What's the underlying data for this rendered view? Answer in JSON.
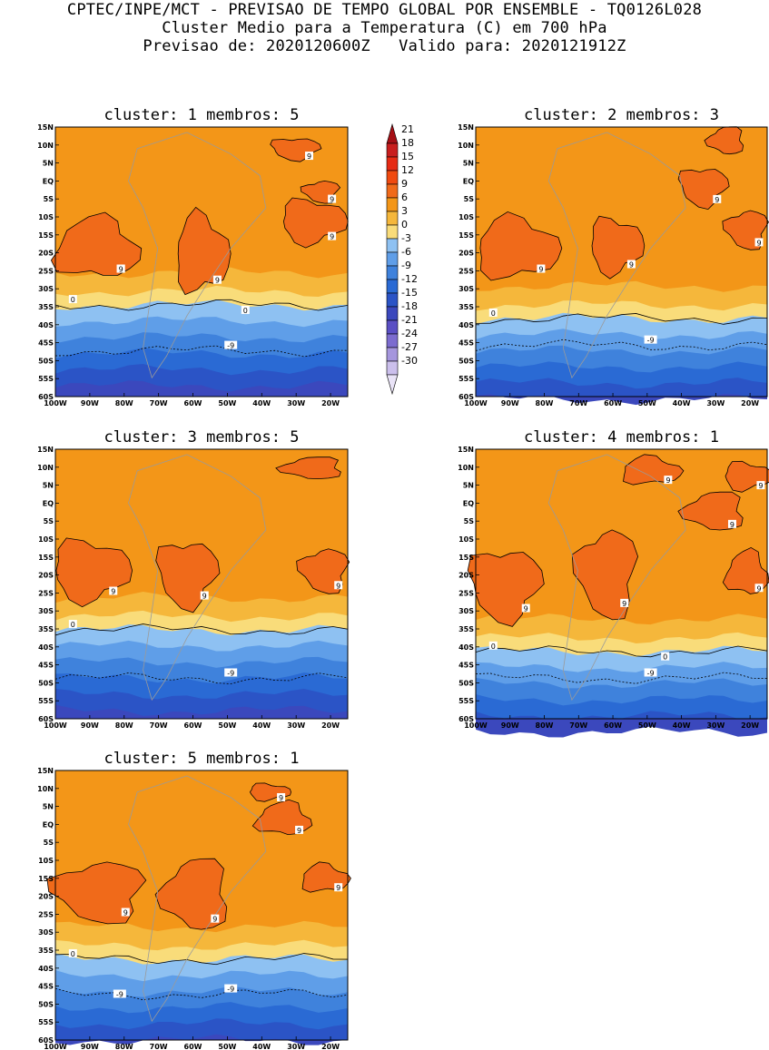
{
  "header": {
    "line1": "CPTEC/INPE/MCT - PREVISAO DE TEMPO GLOBAL POR ENSEMBLE - TQ0126L028",
    "line2": "Cluster Medio para a Temperatura (C) em 700 hPa",
    "line3": "Previsao de: 2020120600Z   Valido para: 2020121912Z"
  },
  "panels": [
    {
      "cluster": "1",
      "membros": "5",
      "title": "cluster: 1  membros: 5",
      "contour_labels": [
        "9",
        "9",
        "9",
        "9",
        "9",
        "9",
        "0",
        "0",
        "-9"
      ]
    },
    {
      "cluster": "2",
      "membros": "3",
      "title": "cluster: 2  membros: 3",
      "contour_labels": [
        "9",
        "9",
        "9",
        "9",
        "0",
        "-9"
      ]
    },
    {
      "cluster": "3",
      "membros": "5",
      "title": "cluster: 3  membros: 5",
      "contour_labels": [
        "9",
        "9",
        "9",
        "0",
        "-9"
      ]
    },
    {
      "cluster": "4",
      "membros": "1",
      "title": "cluster: 4  membros: 1",
      "contour_labels": [
        "9",
        "9",
        "9",
        "9",
        "9",
        "9",
        "0",
        "0",
        "-9"
      ]
    },
    {
      "cluster": "5",
      "membros": "1",
      "title": "cluster: 5  membros: 1",
      "contour_labels": [
        "9",
        "9",
        "9",
        "9",
        "9",
        "0",
        "-9",
        "-9"
      ]
    }
  ],
  "axes": {
    "lat_ticks": [
      "15N",
      "10N",
      "5N",
      "EQ",
      "5S",
      "10S",
      "15S",
      "20S",
      "25S",
      "30S",
      "35S",
      "40S",
      "45S",
      "50S",
      "55S",
      "60S"
    ],
    "lon_ticks": [
      "100W",
      "90W",
      "80W",
      "70W",
      "60W",
      "50W",
      "40W",
      "30W",
      "20W"
    ]
  },
  "colorbar": {
    "levels": [
      "21",
      "18",
      "15",
      "12",
      "9",
      "6",
      "3",
      "0",
      "-3",
      "-6",
      "-9",
      "-12",
      "-15",
      "-18",
      "-21",
      "-24",
      "-27",
      "-30"
    ],
    "colors": [
      "#a50f15",
      "#c81e1e",
      "#e62b14",
      "#f04a10",
      "#f06a1a",
      "#f39618",
      "#f5b73b",
      "#f9dc7a",
      "#8ec1f2",
      "#5f9ee8",
      "#3f82dc",
      "#2a6ad4",
      "#2b54c6",
      "#3b48bd",
      "#5a4fc4",
      "#7c6ccf",
      "#a596dd",
      "#cbbfec",
      "#e9e3f7"
    ]
  },
  "palette": {
    "warm9": "#f06a1a",
    "orange6": "#f39618",
    "light3": "#f5b73b",
    "yellow0": "#f9dc7a",
    "blue_m3": "#8ec1f2",
    "blue_m6": "#5f9ee8",
    "blue_m9": "#3f82dc",
    "blue_m12": "#2a6ad4",
    "blue_m15": "#2b54c6",
    "purple_m18": "#3b48bd"
  }
}
